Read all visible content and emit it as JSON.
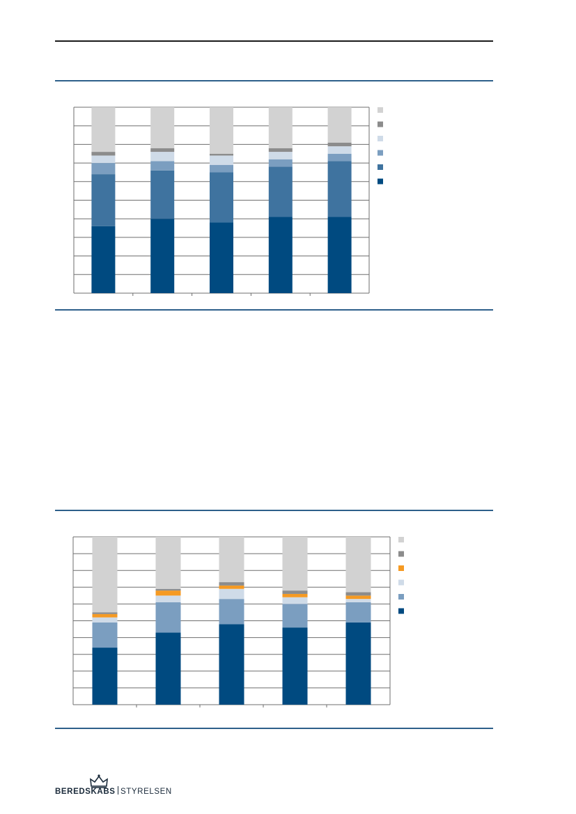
{
  "logo": {
    "text_bold": "BEREDSKABS",
    "text_light": "STYRELSEN"
  },
  "colors": {
    "rule": "#2d5f8a",
    "grid": "#6e6e6e"
  },
  "chart_data": [
    {
      "type": "bar",
      "stacked": true,
      "normalized": true,
      "categories": [
        "",
        "",
        "",
        "",
        ""
      ],
      "ylim": [
        0,
        100
      ],
      "grid": true,
      "legend_position": "right",
      "series": [
        {
          "color": "#004a80",
          "values": [
            36,
            40,
            38,
            41,
            41
          ]
        },
        {
          "color": "#3f739f",
          "values": [
            28,
            26,
            27,
            27,
            30
          ]
        },
        {
          "color": "#7b9ec0",
          "values": [
            6,
            5,
            4,
            4,
            4
          ]
        },
        {
          "color": "#cfdbe8",
          "values": [
            4,
            5,
            5,
            4,
            4
          ]
        },
        {
          "color": "#8c8c8c",
          "values": [
            2,
            2,
            1,
            2,
            2
          ]
        },
        {
          "color": "#d2d2d2",
          "values": [
            24,
            22,
            25,
            22,
            19
          ]
        }
      ]
    },
    {
      "type": "bar",
      "stacked": true,
      "normalized": true,
      "categories": [
        "",
        "",
        "",
        "",
        ""
      ],
      "ylim": [
        0,
        100
      ],
      "grid": true,
      "legend_position": "right",
      "series": [
        {
          "color": "#004a80",
          "values": [
            34,
            43,
            48,
            46,
            49
          ]
        },
        {
          "color": "#7b9ec0",
          "values": [
            15,
            18,
            15,
            14,
            12
          ]
        },
        {
          "color": "#cfdbe8",
          "values": [
            3,
            4,
            6,
            4,
            2
          ]
        },
        {
          "color": "#f59a23",
          "values": [
            2,
            3,
            2,
            2,
            2
          ]
        },
        {
          "color": "#8c8c8c",
          "values": [
            1,
            1,
            2,
            2,
            2
          ]
        },
        {
          "color": "#d2d2d2",
          "values": [
            45,
            31,
            27,
            32,
            33
          ]
        }
      ]
    }
  ]
}
